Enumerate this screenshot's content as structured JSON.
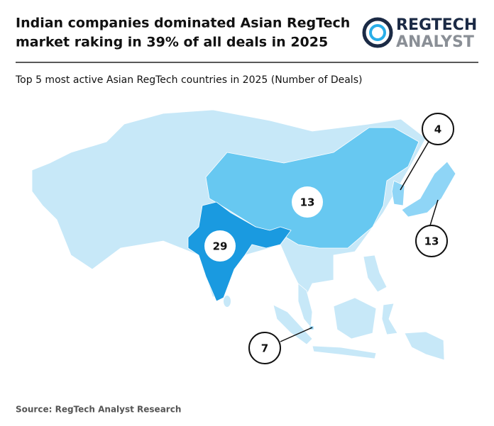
{
  "header": {
    "title_lines": [
      "Indian companies dominated Asian RegTech",
      "market raking in 39% of all deals in 2025"
    ],
    "logo_top": "REGTECH",
    "logo_bottom": "ANALYST"
  },
  "subtitle": "Top 5 most active Asian RegTech countries in 2025 (Number of Deals)",
  "map": {
    "values": [
      29,
      13,
      13,
      4,
      7
    ]
  },
  "source": "Source: RegTech Analyst Research"
}
